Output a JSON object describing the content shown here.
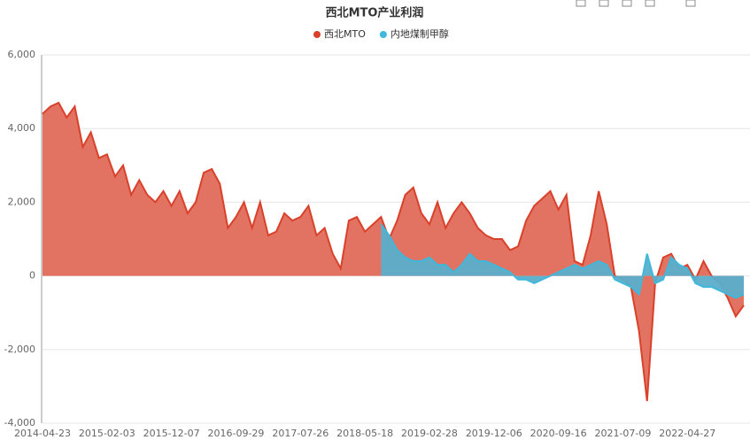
{
  "chart_data": {
    "type": "area",
    "title": "西北MTO产业利润",
    "categories": [
      "2014-04-23",
      null,
      null,
      null,
      null,
      null,
      null,
      null,
      "2015-02-03",
      null,
      null,
      null,
      null,
      null,
      null,
      null,
      "2015-12-07",
      null,
      null,
      null,
      null,
      null,
      null,
      null,
      "2016-09-29",
      null,
      null,
      null,
      null,
      null,
      null,
      null,
      "2017-07-26",
      null,
      null,
      null,
      null,
      null,
      null,
      null,
      "2018-05-18",
      null,
      null,
      null,
      null,
      null,
      null,
      null,
      "2019-02-28",
      null,
      null,
      null,
      null,
      null,
      null,
      null,
      "2019-12-06",
      null,
      null,
      null,
      null,
      null,
      null,
      null,
      "2020-09-16",
      null,
      null,
      null,
      null,
      null,
      null,
      null,
      "2021-07-09",
      null,
      null,
      null,
      null,
      null,
      null,
      null,
      "2022-04-27",
      null,
      null,
      null,
      null,
      null,
      null,
      null
    ],
    "series": [
      {
        "name": "西北MTO",
        "color": "#d9412b",
        "fill": "#e06a58",
        "values": [
          4400,
          4600,
          4700,
          4300,
          4600,
          3500,
          3900,
          3200,
          3300,
          2700,
          3000,
          2200,
          2600,
          2200,
          2000,
          2300,
          1900,
          2300,
          1700,
          2000,
          2800,
          2900,
          2500,
          1300,
          1600,
          2000,
          1300,
          2000,
          1100,
          1200,
          1700,
          1500,
          1600,
          1900,
          1100,
          1300,
          600,
          200,
          1500,
          1600,
          1200,
          1400,
          1600,
          1000,
          1500,
          2200,
          2400,
          1700,
          1400,
          2000,
          1300,
          1700,
          2000,
          1700,
          1300,
          1100,
          1000,
          1000,
          700,
          800,
          1500,
          1900,
          2100,
          2300,
          1800,
          2200,
          400,
          300,
          1100,
          2300,
          1400,
          0,
          -100,
          -300,
          -1500,
          -3400,
          -200,
          500,
          600,
          200,
          300,
          -100,
          400,
          0,
          -200,
          -600,
          -1100,
          -800
        ]
      },
      {
        "name": "内地煤制甲醇",
        "color": "#3fb8dc",
        "fill": "#5aaecb",
        "values": [
          null,
          null,
          null,
          null,
          null,
          null,
          null,
          null,
          null,
          null,
          null,
          null,
          null,
          null,
          null,
          null,
          null,
          null,
          null,
          null,
          null,
          null,
          null,
          null,
          null,
          null,
          null,
          null,
          null,
          null,
          null,
          null,
          null,
          null,
          null,
          null,
          null,
          null,
          null,
          null,
          null,
          null,
          1400,
          1100,
          700,
          500,
          400,
          400,
          500,
          300,
          300,
          100,
          300,
          600,
          400,
          400,
          300,
          200,
          100,
          -100,
          -100,
          -200,
          -100,
          0,
          100,
          200,
          300,
          200,
          300,
          400,
          300,
          -100,
          -200,
          -300,
          -500,
          600,
          -200,
          -100,
          500,
          300,
          200,
          -200,
          -300,
          -300,
          -400,
          -500,
          -600,
          -500
        ]
      }
    ],
    "ylim": [
      -4000,
      6000
    ],
    "yticks": [
      {
        "value": -4000,
        "label": "-4,000"
      },
      {
        "value": -2000,
        "label": "-2,000"
      },
      0,
      {
        "value": 2000,
        "label": "2,000"
      },
      {
        "value": 4000,
        "label": "4,000"
      },
      {
        "value": 6000,
        "label": "6,000"
      }
    ],
    "grid": true
  }
}
